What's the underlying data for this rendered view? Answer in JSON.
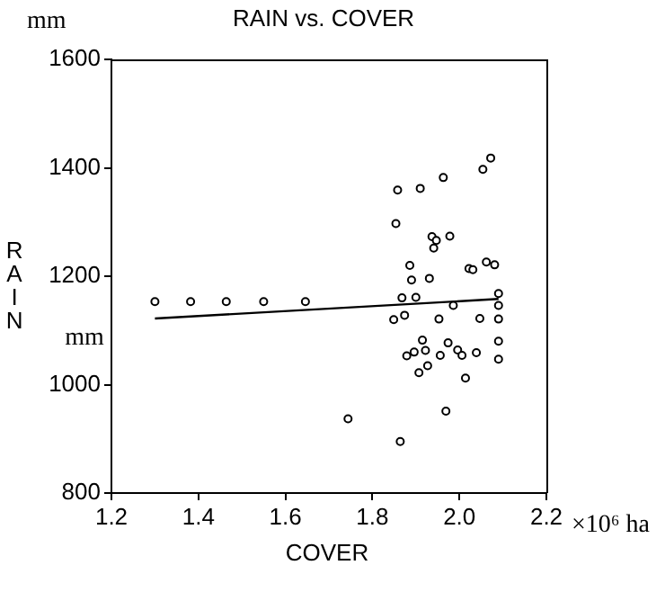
{
  "chart_data": {
    "type": "scatter",
    "title": "RAIN vs. COVER",
    "xlabel": "COVER",
    "ylabel": "RAIN",
    "annotations": [
      "mm",
      "mm",
      "×10⁶ ha"
    ],
    "xlim": [
      1.2,
      2.2
    ],
    "xticks": [
      1.2,
      1.4,
      1.6,
      1.8,
      {
        "value": 2,
        "label": "2.0"
      },
      2.2
    ],
    "ylim": [
      800,
      1600
    ],
    "yticks": [
      800,
      1000,
      1200,
      1400,
      1600
    ],
    "grid": false,
    "legend": false,
    "series": [
      {
        "color": "#000000",
        "marker": "circle",
        "x": [
          1.3,
          1.382,
          1.464,
          1.55,
          1.646,
          2.072,
          2.054,
          1.963,
          1.91,
          1.858,
          1.854,
          1.937,
          1.947,
          1.978,
          1.941,
          1.886,
          2.062,
          2.081,
          2.022,
          2.031,
          1.89,
          1.931,
          1.868,
          1.9,
          2.09,
          1.986,
          2.09,
          1.849,
          1.874,
          1.953,
          2.047,
          2.09,
          1.915,
          1.974,
          2.09,
          1.879,
          1.896,
          1.922,
          1.956,
          1.996,
          2.006,
          2.039,
          2.09,
          1.927,
          1.907,
          2.014,
          1.969,
          1.744,
          1.864
        ],
        "values": [
          1153,
          1153,
          1153,
          1153,
          1153,
          1418,
          1397,
          1382,
          1362,
          1359,
          1297,
          1273,
          1266,
          1274,
          1252,
          1220,
          1226,
          1221,
          1214,
          1212,
          1193,
          1196,
          1160,
          1161,
          1168,
          1146,
          1146,
          1120,
          1128,
          1121,
          1122,
          1121,
          1082,
          1077,
          1080,
          1053,
          1060,
          1063,
          1054,
          1064,
          1054,
          1059,
          1047,
          1035,
          1022,
          1012,
          951,
          937,
          895
        ]
      },
      {
        "type": "line",
        "marker": "none",
        "color": "#000000",
        "x": [
          1.3,
          2.09
        ],
        "values": [
          1122,
          1158
        ]
      }
    ]
  }
}
